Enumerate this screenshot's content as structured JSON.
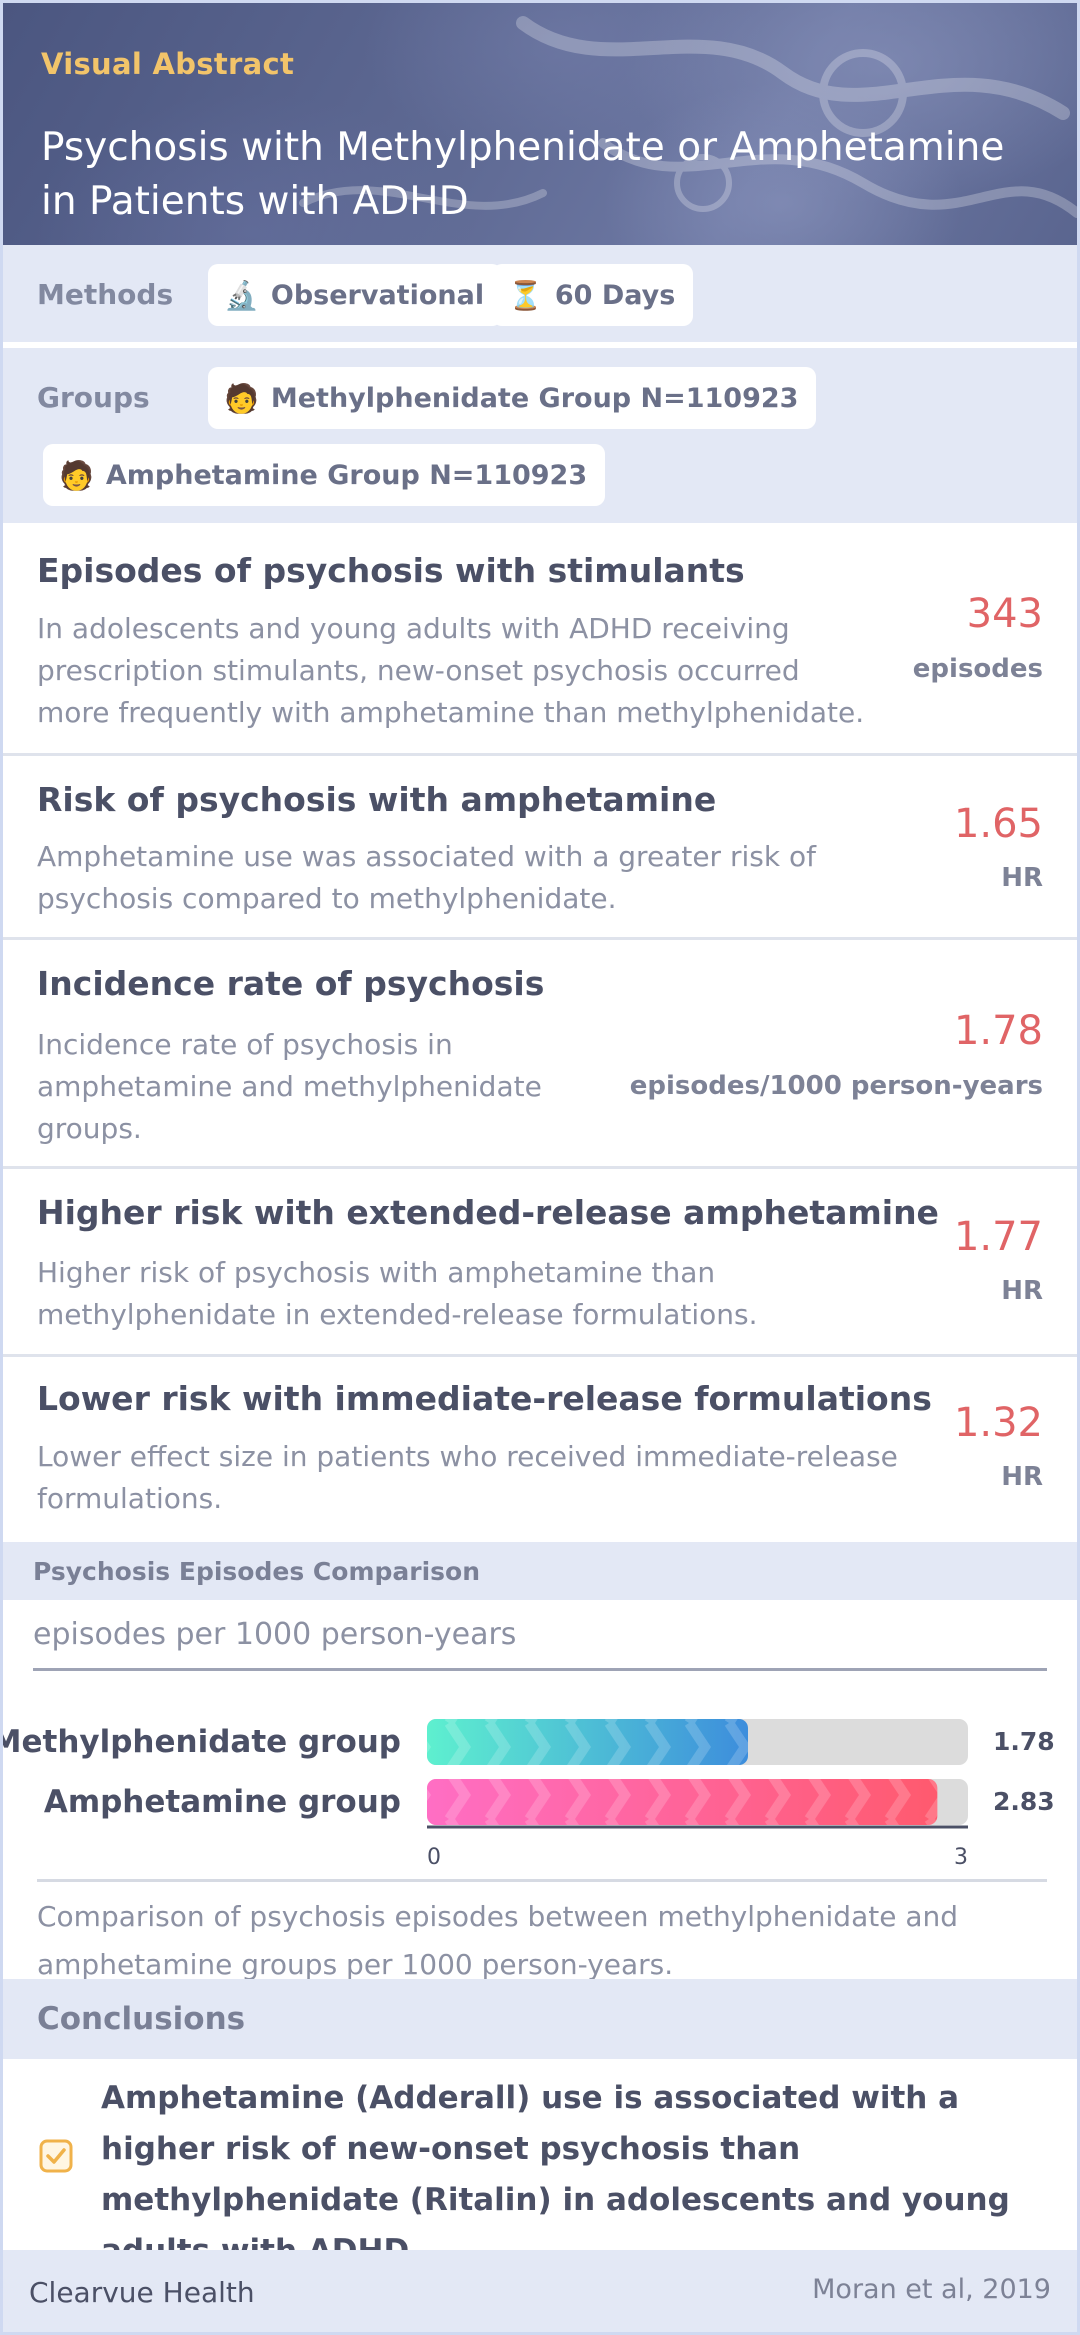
{
  "header": {
    "eyebrow": "Visual Abstract",
    "title": "Psychosis with Methylphenidate or Amphetamine in Patients with ADHD"
  },
  "methods": {
    "label": "Methods",
    "tags": [
      {
        "icon": "microscope-icon",
        "glyph": "🔬",
        "text": "Observational"
      },
      {
        "icon": "hourglass-icon",
        "glyph": "⏳",
        "text": "60 Days"
      }
    ]
  },
  "groups": {
    "label": "Groups",
    "tags": [
      {
        "icon": "person-icon",
        "glyph": "🧑",
        "text": "Methylphenidate Group N=110923"
      },
      {
        "icon": "person-icon",
        "glyph": "🧑",
        "text": "Amphetamine Group N=110923"
      }
    ]
  },
  "findings": [
    {
      "title": "Episodes of psychosis with stimulants",
      "desc": [
        "In adolescents and young adults with ADHD receiving",
        "prescription stimulants, new-onset psychosis occurred",
        "more frequently with amphetamine than methylphenidate."
      ],
      "value": "343",
      "unit": "episodes"
    },
    {
      "title": "Risk of psychosis with amphetamine",
      "desc": [
        "Amphetamine use was associated with a greater risk of",
        "psychosis compared to methylphenidate."
      ],
      "value": "1.65",
      "unit": "HR"
    },
    {
      "title": "Incidence rate of psychosis",
      "desc": [
        "Incidence rate of psychosis in",
        "amphetamine and methylphenidate",
        "groups."
      ],
      "value": "1.78",
      "unit": "episodes/1000 person-years"
    },
    {
      "title": "Higher risk with extended-release amphetamine",
      "desc": [
        "Higher risk of psychosis with amphetamine than",
        "methylphenidate in extended-release formulations."
      ],
      "value": "1.77",
      "unit": "HR"
    },
    {
      "title": "Lower risk with immediate-release formulations",
      "desc": [
        "Lower effect size in patients who received immediate-release",
        "formulations."
      ],
      "value": "1.32",
      "unit": "HR"
    }
  ],
  "chart_section": {
    "title": "Psychosis Episodes Comparison",
    "subtitle": "episodes per 1000 person-years",
    "caption": "Comparison of psychosis episodes between methylphenidate and amphetamine groups per 1000 person-years."
  },
  "chart_data": {
    "type": "bar",
    "orientation": "horizontal",
    "categories": [
      "Methylphenidate group",
      "Amphetamine group"
    ],
    "values": [
      1.78,
      2.83
    ],
    "value_labels": [
      "1.78",
      "2.83"
    ],
    "xlim": [
      0,
      3
    ],
    "tick_labels": [
      "0",
      "3"
    ],
    "colors": [
      [
        "#5ef0cf",
        "#3d8ddc"
      ],
      [
        "#ff6ec4",
        "#ff5a6e"
      ]
    ],
    "grid": false
  },
  "conclusions": {
    "title": "Conclusions",
    "text": "Amphetamine (Adderall) use is associated with a higher risk of new-onset psychosis than methylphenidate (Ritalin) in adolescents and young adults with ADHD."
  },
  "footer": {
    "brand": "Clearvue Health",
    "citation": "Moran et al, 2019"
  }
}
